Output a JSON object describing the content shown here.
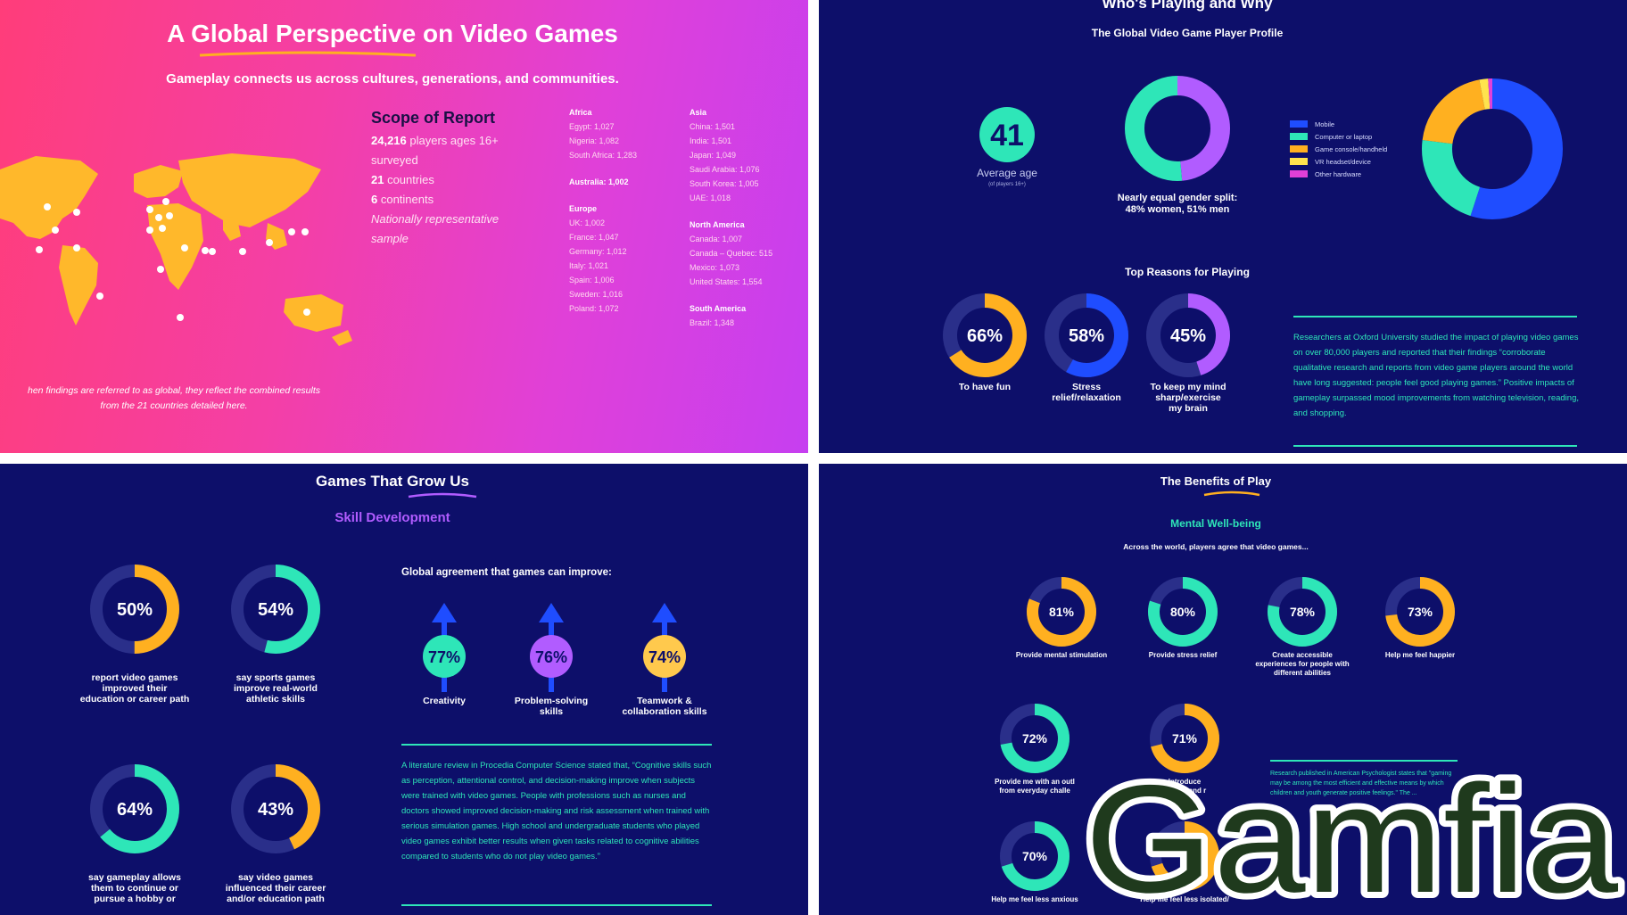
{
  "panel1": {
    "title": "A Global Perspective on Video Games",
    "subtitle": "Gameplay connects us across cultures, generations, and communities.",
    "scope_heading": "Scope of Report",
    "scope_lines": [
      {
        "bold": "24,216",
        "text": " players ages 16+"
      },
      {
        "bold": "",
        "text": "surveyed"
      },
      {
        "bold": "21",
        "text": " countries"
      },
      {
        "bold": "6",
        "text": " continents"
      },
      {
        "bold": "",
        "text": "Nationally representative"
      },
      {
        "bold": "",
        "text": "sample"
      }
    ],
    "regions_col1": [
      {
        "name": "Africa",
        "countries": [
          "Egypt: 1,027",
          "Nigeria: 1,082",
          "South Africa: 1,283"
        ]
      },
      {
        "name": "Australia: 1,002",
        "countries": []
      },
      {
        "name": "Europe",
        "countries": [
          "UK: 1,002",
          "France: 1,047",
          "Germany: 1,012",
          "Italy: 1,021",
          "Spain: 1,006",
          "Sweden: 1,016",
          "Poland: 1,072"
        ]
      }
    ],
    "regions_col2": [
      {
        "name": "Asia",
        "countries": [
          "China: 1,501",
          "India: 1,501",
          "Japan: 1,049",
          "Saudi Arabia: 1,076",
          "South Korea: 1,005",
          "UAE: 1,018"
        ]
      },
      {
        "name": "North America",
        "countries": [
          "Canada: 1,007",
          "Canada – Quebec: 515",
          "Mexico: 1,073",
          "United States: 1,554"
        ]
      },
      {
        "name": "South America",
        "countries": [
          "Brazil: 1,348"
        ]
      }
    ],
    "footnote_1": "hen findings are referred to as global, they reflect the combined results",
    "footnote_2": "from the 21 countries detailed here."
  },
  "panel2": {
    "title": "Who's Playing and Why",
    "profile_heading": "The Global Video Game Player Profile",
    "average_age": "41",
    "average_age_label": "Average age",
    "average_age_note": "(of players 16+)",
    "gender_caption_1": "Nearly equal gender split:",
    "gender_caption_2": "48% women, 51% men",
    "reasons_heading": "Top Reasons for Playing",
    "research_text": "Researchers at Oxford University studied the impact of playing video games on over 80,000 players and reported that their findings “corroborate qualitative research and reports from video game players around the world have long suggested: people feel good playing games.” Positive impacts of gameplay surpassed mood improvements from watching television, reading, and shopping."
  },
  "panel3": {
    "title": "Games That Grow Us",
    "subtitle": "Skill Development",
    "agreement_heading": "Global agreement that games can improve:",
    "review_text": "A literature review in Procedia Computer Science stated that, “Cognitive skills such as perception, attentional control, and decision-making improve when subjects were trained with video games. People with professions such as nurses and doctors showed improved decision-making and risk assessment when trained with serious simulation games. High school and undergraduate students who played video games exhibit better results when given tasks related to cognitive abilities compared to students who do not play video games.”"
  },
  "panel4": {
    "title": "The Benefits of Play",
    "subtitle": "Mental Well-being",
    "intro": "Across the world, players agree that video games...",
    "research_text": "Research published in American Psychologist states that \"gaming may be among the most efficient and effective means by which children and youth generate positive feelings.\" The ...",
    "logo_text": "Gamfia"
  },
  "chart_data": [
    {
      "type": "pie",
      "title": "",
      "categories": [
        "women",
        "men"
      ],
      "values": [
        48,
        51
      ],
      "colors": [
        "#b15cff",
        "#2ee6b8"
      ]
    },
    {
      "type": "pie",
      "title": "",
      "categories": [
        "Mobile",
        "Computer or laptop",
        "Game console/handheld",
        "VR headset/device",
        "Other hardware"
      ],
      "values": [
        55,
        22,
        20,
        2,
        1
      ],
      "colors": [
        "#1f4dff",
        "#2ee6b8",
        "#ffb020",
        "#ffe34d",
        "#e040d8"
      ],
      "legend": "left"
    },
    {
      "type": "pie",
      "title": "Top Reasons for Playing",
      "items": [
        {
          "pct": 66,
          "label": "66%",
          "caption": [
            "To have fun"
          ],
          "color": "#ffb020"
        },
        {
          "pct": 58,
          "label": "58%",
          "caption": [
            "Stress",
            "relief/relaxation"
          ],
          "color": "#1f4dff"
        },
        {
          "pct": 45,
          "label": "45%",
          "caption": [
            "To keep my mind",
            "sharp/exercise",
            "my brain"
          ],
          "color": "#b15cff"
        }
      ]
    },
    {
      "type": "pie",
      "title": "Skill Development",
      "items": [
        {
          "pct": 50,
          "label": "50%",
          "caption": [
            "report video games",
            "improved their",
            "education or career path"
          ],
          "color": "#ffb020"
        },
        {
          "pct": 54,
          "label": "54%",
          "caption": [
            "say sports games",
            "improve real-world",
            "athletic skills"
          ],
          "color": "#2ee6b8"
        },
        {
          "pct": 64,
          "label": "64%",
          "caption": [
            "say gameplay allows",
            "them to continue or",
            "pursue a hobby or"
          ],
          "color": "#2ee6b8"
        },
        {
          "pct": 43,
          "label": "43%",
          "caption": [
            "say video games",
            "influenced their career",
            "and/or education path"
          ],
          "color": "#ffb020"
        }
      ]
    },
    {
      "type": "bar",
      "title": "Global agreement that games can improve:",
      "categories": [
        "Creativity",
        "Problem-solving skills",
        "Teamwork & collaboration skills"
      ],
      "values": [
        77,
        76,
        74
      ],
      "labels": [
        "77%",
        "76%",
        "74%"
      ],
      "captions": [
        [
          "Creativity"
        ],
        [
          "Problem-solving",
          "skills"
        ],
        [
          "Teamwork &",
          "collaboration skills"
        ]
      ],
      "colors": [
        "#2ee6b8",
        "#b15cff",
        "#ffc94d"
      ]
    },
    {
      "type": "pie",
      "title": "Mental Well-being",
      "items": [
        {
          "pct": 81,
          "label": "81%",
          "caption": [
            "Provide mental stimulation"
          ],
          "color": "#ffb020"
        },
        {
          "pct": 80,
          "label": "80%",
          "caption": [
            "Provide stress relief"
          ],
          "color": "#2ee6b8"
        },
        {
          "pct": 78,
          "label": "78%",
          "caption": [
            "Create accessible",
            "experiences for people with",
            "different abilities"
          ],
          "color": "#2ee6b8"
        },
        {
          "pct": 73,
          "label": "73%",
          "caption": [
            "Help me feel happier"
          ],
          "color": "#ffb020"
        },
        {
          "pct": 72,
          "label": "72%",
          "caption": [
            "Provide me with an outl",
            "from everyday challe"
          ],
          "color": "#2ee6b8"
        },
        {
          "pct": 71,
          "label": "71%",
          "caption": [
            "Introduce",
            "friends and r"
          ],
          "color": "#ffb020"
        },
        {
          "pct": 70,
          "label": "70%",
          "caption": [
            "Help me feel less anxious"
          ],
          "color": "#2ee6b8"
        },
        {
          "pct": 70,
          "label": "",
          "caption": [
            "Help me feel less isolated/"
          ],
          "color": "#ffb020"
        }
      ]
    }
  ]
}
